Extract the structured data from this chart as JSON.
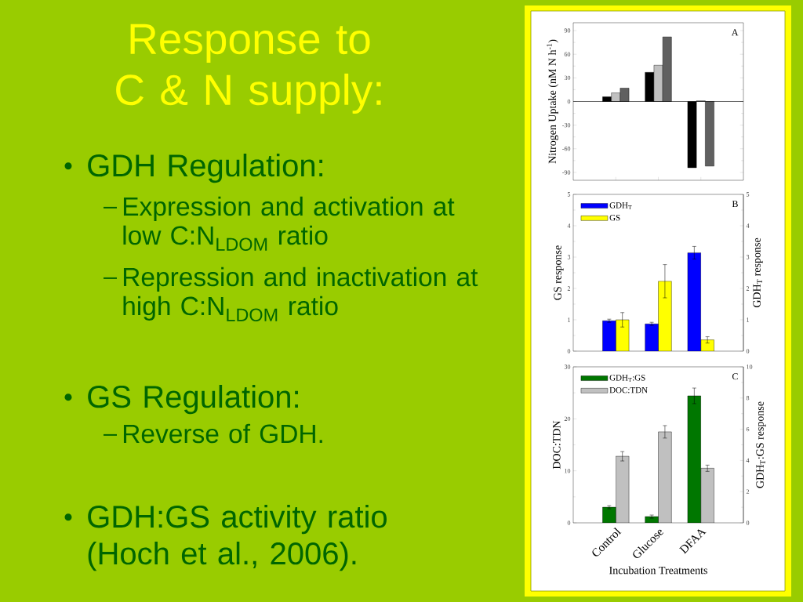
{
  "chart_data": [
    {
      "type": "other",
      "title": "Response to C & N supply:",
      "annotations": [
        "GDH Regulation:",
        "Expression and activation at low C:N$_{LDOM}$ ratio",
        "Repression and inactivation at high C:N$_{LDOM}$ ratio",
        "GS Regulation:",
        "Reverse of GDH.",
        "GDH:GS activity ratio (Hoch et al., 2006)."
      ]
    },
    {
      "type": "bar",
      "ylabel": "Nitrogen Uptake (nM N h$^{-1}$)",
      "categories": [
        null,
        null,
        null
      ],
      "series": [
        {
          "color": "#000000",
          "values": [
            6,
            37,
            -84
          ]
        },
        {
          "color": "#c0c0c0",
          "values": [
            11,
            46,
            1
          ]
        },
        {
          "color": "#606060",
          "values": [
            17,
            82,
            -82
          ]
        }
      ],
      "ylim": [
        -100,
        100
      ],
      "yticks": [
        -90,
        -60,
        -30,
        0,
        30,
        60,
        90
      ],
      "tick_labels": "y",
      "annotations": [
        "A"
      ]
    },
    {
      "type": "bar",
      "ylabel": "GS response",
      "y2label": "GDH$_{T}$ response",
      "categories": [
        null,
        null,
        null
      ],
      "series": [
        {
          "name": "GDH$_{T}$",
          "color": "#0000ff",
          "axis": "y2",
          "values": [
            0.97,
            0.87,
            3.14
          ],
          "errors": [
            0.05,
            0.05,
            0.2
          ]
        },
        {
          "name": "GS",
          "color": "#ffff00",
          "values": [
            1.0,
            2.23,
            0.36
          ],
          "errors": [
            0.23,
            0.53,
            0.1
          ]
        }
      ],
      "ylim": [
        0,
        5
      ],
      "yticks": [
        0,
        1,
        2,
        3,
        4,
        5
      ],
      "y2lim": [
        0,
        5
      ],
      "y2ticks": [
        0,
        1,
        2,
        3,
        4,
        5
      ],
      "legend": "top left",
      "tick_labels": "y",
      "annotations": [
        "B"
      ]
    },
    {
      "type": "bar",
      "xlabel": "Incubation Treatments",
      "ylabel": "DOC:TDN",
      "y2label": "GDH$_{T}$:GS response",
      "categories": [
        "Control",
        "Glucose",
        "DFAA"
      ],
      "series": [
        {
          "name": "GDH$_{T}$:GS",
          "color": "#007700",
          "axis": "y2",
          "values": [
            1.0,
            0.4,
            8.14
          ],
          "errors": [
            0.1,
            0.1,
            0.5
          ]
        },
        {
          "name": "DOC:TDN",
          "color": "#c0c0c0",
          "values": [
            12.8,
            17.5,
            10.5
          ],
          "errors": [
            0.9,
            1.2,
            0.6
          ]
        }
      ],
      "ylim": [
        0,
        30
      ],
      "yticks": [
        0,
        10,
        20,
        30
      ],
      "y2lim": [
        0,
        10
      ],
      "y2ticks": [
        0,
        2,
        4,
        6,
        8,
        10
      ],
      "legend": "top left",
      "annotations": [
        "C"
      ]
    }
  ]
}
